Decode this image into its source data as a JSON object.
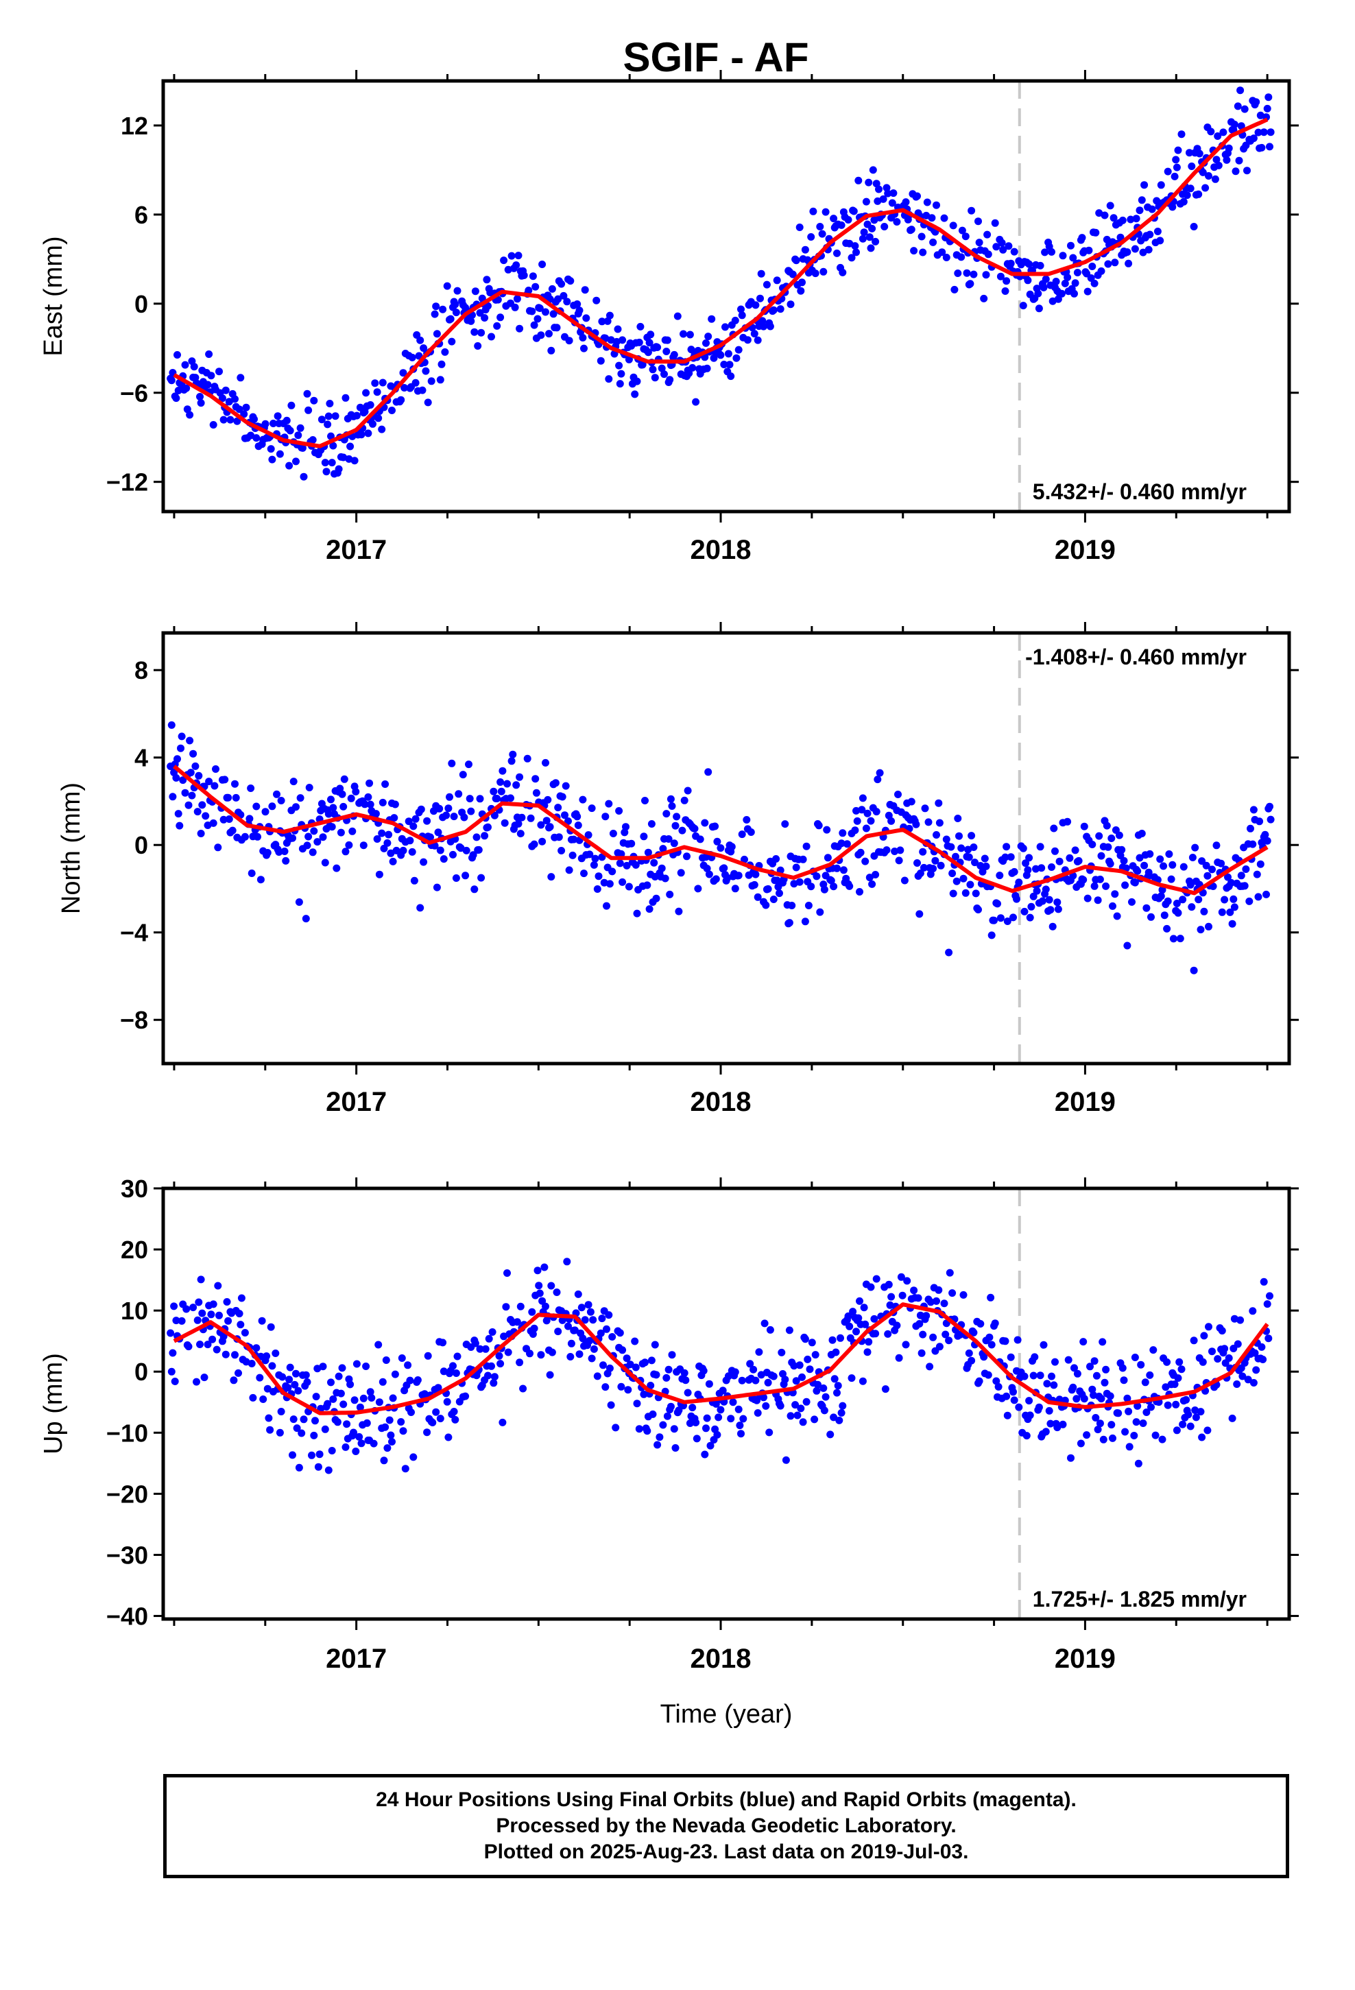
{
  "title": "SGIF - AF",
  "xlabel": "Time (year)",
  "footer": {
    "line1": "24 Hour Positions Using Final Orbits (blue) and Rapid Orbits (magenta).",
    "line2": "Processed by the Nevada Geodetic Laboratory.",
    "line3": "Plotted on 2025-Aug-23. Last data on 2019-Jul-03."
  },
  "colors": {
    "points": "#0000ff",
    "model": "#ff0000",
    "marker": "#c8c8c8",
    "axes": "#000000"
  },
  "chart_data": [
    {
      "type": "scatter",
      "ylabel": "East (mm)",
      "xlim": [
        2016.47,
        2019.56
      ],
      "ylim": [
        -14,
        15
      ],
      "yticks": [
        12,
        6,
        0,
        -6,
        -12
      ],
      "xticks": [
        2017,
        2018,
        2019
      ],
      "vline_x": 2018.82,
      "rate_label": "5.432+/- 0.460 mm/yr",
      "rate_position": "bottom-right",
      "model": {
        "x": [
          2016.5,
          2016.6,
          2016.7,
          2016.8,
          2016.9,
          2017.0,
          2017.1,
          2017.2,
          2017.3,
          2017.4,
          2017.5,
          2017.6,
          2017.7,
          2017.8,
          2017.9,
          2018.0,
          2018.1,
          2018.2,
          2018.3,
          2018.4,
          2018.5,
          2018.6,
          2018.7,
          2018.8,
          2018.9,
          2019.0,
          2019.1,
          2019.2,
          2019.3,
          2019.4,
          2019.5
        ],
        "y": [
          -4.8,
          -6.2,
          -8.0,
          -9.2,
          -9.6,
          -8.5,
          -6.0,
          -3.2,
          -0.7,
          0.8,
          0.5,
          -1.3,
          -3.0,
          -3.9,
          -3.9,
          -2.8,
          -1.0,
          1.5,
          4.1,
          5.9,
          6.3,
          5.0,
          3.2,
          2.0,
          2.0,
          2.8,
          4.1,
          6.1,
          8.8,
          11.3,
          12.4
        ]
      },
      "scatter_model": "east"
    },
    {
      "type": "scatter",
      "ylabel": "North (mm)",
      "xlim": [
        2016.47,
        2019.56
      ],
      "ylim": [
        -10,
        9.7
      ],
      "yticks": [
        8,
        4,
        0,
        -4,
        -8
      ],
      "xticks": [
        2017,
        2018,
        2019
      ],
      "vline_x": 2018.82,
      "rate_label": "-1.408+/- 0.460 mm/yr",
      "rate_position": "top-right",
      "model": {
        "x": [
          2016.5,
          2016.6,
          2016.7,
          2016.8,
          2016.9,
          2017.0,
          2017.1,
          2017.2,
          2017.3,
          2017.4,
          2017.5,
          2017.6,
          2017.7,
          2017.8,
          2017.9,
          2018.0,
          2018.1,
          2018.2,
          2018.3,
          2018.4,
          2018.5,
          2018.6,
          2018.7,
          2018.8,
          2018.9,
          2019.0,
          2019.1,
          2019.2,
          2019.3,
          2019.4,
          2019.5
        ],
        "y": [
          3.6,
          2.2,
          0.9,
          0.6,
          1.0,
          1.4,
          1.0,
          0.1,
          0.6,
          1.9,
          1.8,
          0.6,
          -0.6,
          -0.6,
          -0.1,
          -0.5,
          -1.1,
          -1.5,
          -0.9,
          0.4,
          0.7,
          -0.3,
          -1.5,
          -2.1,
          -1.6,
          -1.0,
          -1.2,
          -1.8,
          -2.2,
          -1.1,
          -0.1
        ]
      },
      "scatter_model": "north"
    },
    {
      "type": "scatter",
      "ylabel": "Up (mm)",
      "xlim": [
        2016.47,
        2019.56
      ],
      "ylim": [
        -40.5,
        30
      ],
      "yticks": [
        30,
        20,
        10,
        0,
        -10,
        -20,
        -30,
        -40
      ],
      "xticks": [
        2017,
        2018,
        2019
      ],
      "vline_x": 2018.82,
      "rate_label": "1.725+/- 1.825 mm/yr",
      "rate_position": "bottom-right",
      "model": {
        "x": [
          2016.5,
          2016.6,
          2016.7,
          2016.8,
          2016.9,
          2017.0,
          2017.1,
          2017.2,
          2017.3,
          2017.4,
          2017.5,
          2017.6,
          2017.7,
          2017.8,
          2017.9,
          2018.0,
          2018.1,
          2018.2,
          2018.3,
          2018.4,
          2018.5,
          2018.6,
          2018.7,
          2018.8,
          2018.9,
          2019.0,
          2019.1,
          2019.2,
          2019.3,
          2019.4,
          2019.5
        ],
        "y": [
          5.0,
          8.1,
          4.2,
          -3.5,
          -6.8,
          -6.7,
          -5.8,
          -4.4,
          -1.1,
          4.2,
          9.3,
          9.0,
          2.5,
          -3.0,
          -5.0,
          -4.4,
          -3.6,
          -2.8,
          0.2,
          6.5,
          11.0,
          9.8,
          5.0,
          -1.0,
          -5.0,
          -5.8,
          -5.3,
          -4.4,
          -3.3,
          -0.2,
          7.8
        ]
      },
      "scatter_model": "up"
    }
  ],
  "tick_labels_x": [
    "2017",
    "2018",
    "2019"
  ]
}
